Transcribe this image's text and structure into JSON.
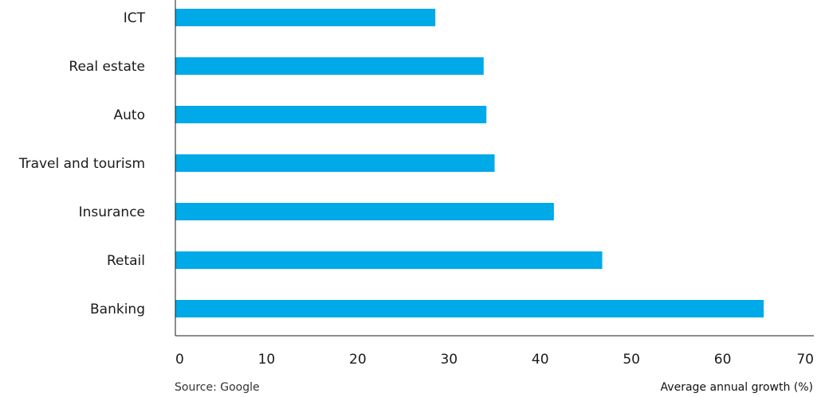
{
  "chart_data": {
    "type": "bar",
    "orientation": "horizontal",
    "categories": [
      "ICT",
      "Real estate",
      "Auto",
      "Travel and tourism",
      "Insurance",
      "Retail",
      "Banking"
    ],
    "values": [
      28.5,
      33.8,
      34.1,
      35.0,
      41.5,
      46.8,
      64.5
    ],
    "xlabel": "Average annual growth (%)",
    "xlim": [
      0,
      70
    ],
    "xticks": [
      0,
      10,
      20,
      30,
      40,
      50,
      60,
      70
    ],
    "grid": false,
    "legend": "none",
    "bar_color": "#00A9E8",
    "axis_color": "#1a1a1a"
  },
  "source": "Source: Google"
}
